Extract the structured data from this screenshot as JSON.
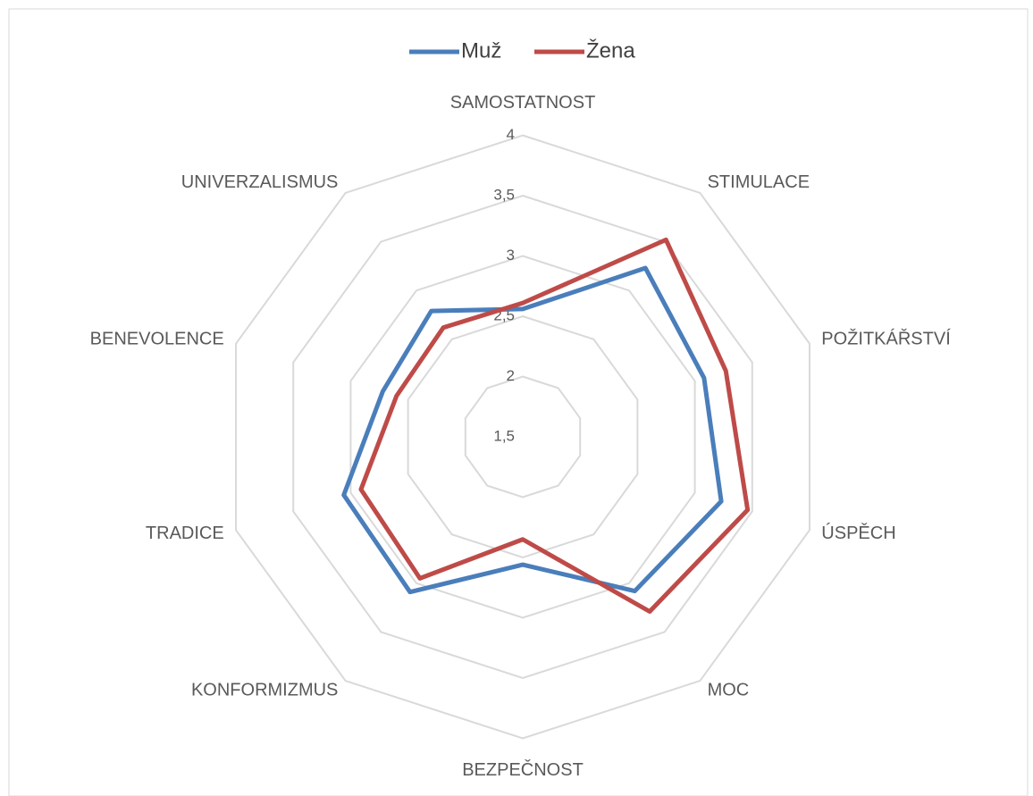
{
  "chart_data": {
    "type": "radar",
    "categories": [
      "SAMOSTATNOST",
      "STIMULACE",
      "POŽITKÁŘSTVÍ",
      "ÚSPĚCH",
      "MOC",
      "BEZPEČNOST",
      "KONFORMIZMUS",
      "TRADICE",
      "BENEVOLENCE",
      "UNIVERZALISMUS"
    ],
    "series": [
      {
        "name": "Muž",
        "color": "#4a7ebb",
        "values": [
          2.56,
          3.23,
          3.08,
          3.23,
          3.08,
          2.56,
          3.09,
          3.06,
          2.72,
          2.79
        ]
      },
      {
        "name": "Žena",
        "color": "#be4b48",
        "values": [
          2.61,
          3.52,
          3.27,
          3.46,
          3.29,
          2.35,
          2.95,
          2.91,
          2.6,
          2.62
        ]
      }
    ],
    "ylim": [
      1.5,
      4
    ],
    "yticks": [
      {
        "value": 1.5,
        "label": "1,5"
      },
      2,
      {
        "value": 2.5,
        "label": "2,5"
      },
      3,
      {
        "value": 3.5,
        "label": "3,5"
      },
      4
    ],
    "grid": true,
    "legend": "top"
  }
}
